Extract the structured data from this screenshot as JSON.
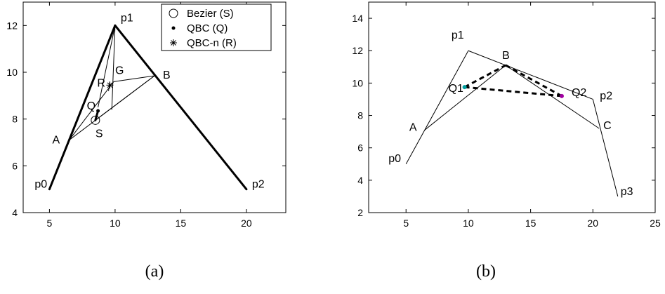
{
  "chart_data": [
    {
      "panel": "a",
      "type": "line",
      "caption": "(a)",
      "xlim": [
        3,
        23
      ],
      "ylim": [
        4,
        13
      ],
      "xticks": [
        5,
        10,
        15,
        20
      ],
      "yticks": [
        4,
        6,
        8,
        10,
        12
      ],
      "grid": false,
      "legend_position": "top-right",
      "points": [
        {
          "name": "p0",
          "x": 5,
          "y": 5
        },
        {
          "name": "p1",
          "x": 10,
          "y": 12
        },
        {
          "name": "p2",
          "x": 20,
          "y": 5
        },
        {
          "name": "A",
          "x": 6.5,
          "y": 7.1
        },
        {
          "name": "B",
          "x": 13,
          "y": 9.85
        },
        {
          "name": "G",
          "x": 9.9,
          "y": 9.6
        },
        {
          "name": "Q",
          "x": 8.7,
          "y": 8.35
        },
        {
          "name": "R",
          "x": 9.6,
          "y": 9.45
        },
        {
          "name": "S",
          "x": 8.5,
          "y": 7.95
        }
      ],
      "thick_segments": [
        [
          [
            5,
            5
          ],
          [
            10,
            12
          ]
        ],
        [
          [
            10,
            12
          ],
          [
            20,
            5
          ]
        ],
        [
          [
            8.5,
            7.95
          ],
          [
            8.7,
            8.35
          ]
        ]
      ],
      "thin_segments": [
        [
          [
            6.5,
            7.1
          ],
          [
            13,
            9.85
          ]
        ],
        [
          [
            10,
            12
          ],
          [
            9.75,
            8.4
          ]
        ],
        [
          [
            6.5,
            7.1
          ],
          [
            9.9,
            9.6
          ]
        ],
        [
          [
            9.9,
            9.6
          ],
          [
            13,
            9.85
          ]
        ],
        [
          [
            8.7,
            8.5
          ],
          [
            10,
            12
          ]
        ],
        [
          [
            8.5,
            7.95
          ],
          [
            13,
            9.85
          ]
        ],
        [
          [
            9.5,
            9.2
          ],
          [
            9.6,
            9.6
          ]
        ]
      ],
      "series": [
        {
          "name": "Bezier (S)",
          "marker": "circle",
          "x": [
            8.5
          ],
          "y": [
            7.95
          ]
        },
        {
          "name": "QBC (Q)",
          "marker": "dot",
          "x": [
            8.7
          ],
          "y": [
            8.35
          ]
        },
        {
          "name": "QBC-n (R)",
          "marker": "asterisk",
          "x": [
            9.6
          ],
          "y": [
            9.45
          ]
        }
      ]
    },
    {
      "panel": "b",
      "type": "line",
      "caption": "(b)",
      "xlim": [
        2,
        25
      ],
      "ylim": [
        2,
        15
      ],
      "xticks": [
        5,
        10,
        15,
        20,
        25
      ],
      "yticks": [
        2,
        4,
        6,
        8,
        10,
        12,
        14
      ],
      "grid": false,
      "points": [
        {
          "name": "p0",
          "x": 5,
          "y": 5
        },
        {
          "name": "p1",
          "x": 10,
          "y": 12
        },
        {
          "name": "p2",
          "x": 20,
          "y": 9
        },
        {
          "name": "p3",
          "x": 22,
          "y": 3
        },
        {
          "name": "A",
          "x": 6.5,
          "y": 7.1
        },
        {
          "name": "B",
          "x": 13,
          "y": 11.1
        },
        {
          "name": "C",
          "x": 20.5,
          "y": 7.2
        },
        {
          "name": "Q1",
          "x": 9.7,
          "y": 9.75
        },
        {
          "name": "Q2",
          "x": 17.5,
          "y": 9.2
        }
      ],
      "thin_segments": [
        [
          [
            5,
            5
          ],
          [
            10,
            12
          ]
        ],
        [
          [
            10,
            12
          ],
          [
            20,
            9
          ]
        ],
        [
          [
            20,
            9
          ],
          [
            22,
            3
          ]
        ],
        [
          [
            6.5,
            7.1
          ],
          [
            13,
            11.1
          ]
        ],
        [
          [
            13,
            11.1
          ],
          [
            20.5,
            7.2
          ]
        ]
      ],
      "dashed_segments": [
        [
          [
            9.7,
            9.75
          ],
          [
            13,
            11.1
          ]
        ],
        [
          [
            13,
            11.1
          ],
          [
            17.5,
            9.2
          ]
        ],
        [
          [
            9.7,
            9.75
          ],
          [
            17.5,
            9.2
          ]
        ]
      ],
      "markers": [
        {
          "name": "Q1",
          "x": 9.7,
          "y": 9.75,
          "color": "#00a0a0"
        },
        {
          "name": "Q2",
          "x": 17.5,
          "y": 9.2,
          "color": "#a000a0"
        }
      ]
    }
  ]
}
